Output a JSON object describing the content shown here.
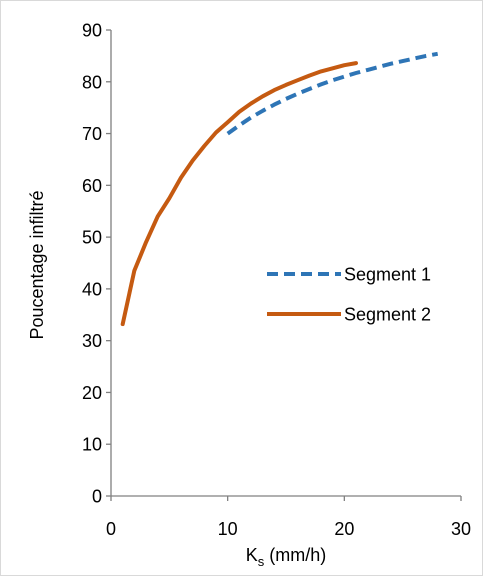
{
  "chart_data": {
    "type": "line",
    "title": "",
    "xlabel_main": "K",
    "xlabel_sub": "s",
    "xlabel_rest": " (mm/h)",
    "ylabel": "Poucentage infiltré",
    "xlim": [
      0,
      30
    ],
    "ylim": [
      0,
      90
    ],
    "x_ticks": [
      0,
      10,
      20,
      30
    ],
    "y_ticks": [
      0,
      10,
      20,
      30,
      40,
      50,
      60,
      70,
      80,
      90
    ],
    "grid": false,
    "legend_position": "right-middle",
    "series": [
      {
        "name": "Segment 1",
        "style": "dashed",
        "color": "#2e75b6",
        "x": [
          10,
          11,
          12,
          13,
          14,
          15,
          16,
          17,
          18,
          19,
          20,
          21,
          22,
          23,
          24,
          25,
          26,
          27,
          28
        ],
        "y": [
          70.0,
          71.6,
          73.1,
          74.4,
          75.6,
          76.7,
          77.7,
          78.6,
          79.5,
          80.3,
          81.0,
          81.7,
          82.3,
          82.9,
          83.5,
          84.0,
          84.5,
          85.0,
          85.4
        ]
      },
      {
        "name": "Segment 2",
        "style": "solid",
        "color": "#c55a11",
        "x": [
          1,
          2,
          3,
          4,
          5,
          6,
          7,
          8,
          9,
          10,
          11,
          12,
          13,
          14,
          15,
          16,
          17,
          18,
          19,
          20,
          21
        ],
        "y": [
          33.2,
          43.5,
          49.0,
          54.0,
          57.5,
          61.5,
          64.8,
          67.6,
          70.2,
          72.2,
          74.2,
          75.8,
          77.2,
          78.4,
          79.4,
          80.3,
          81.2,
          82.0,
          82.6,
          83.2,
          83.6
        ]
      }
    ]
  }
}
